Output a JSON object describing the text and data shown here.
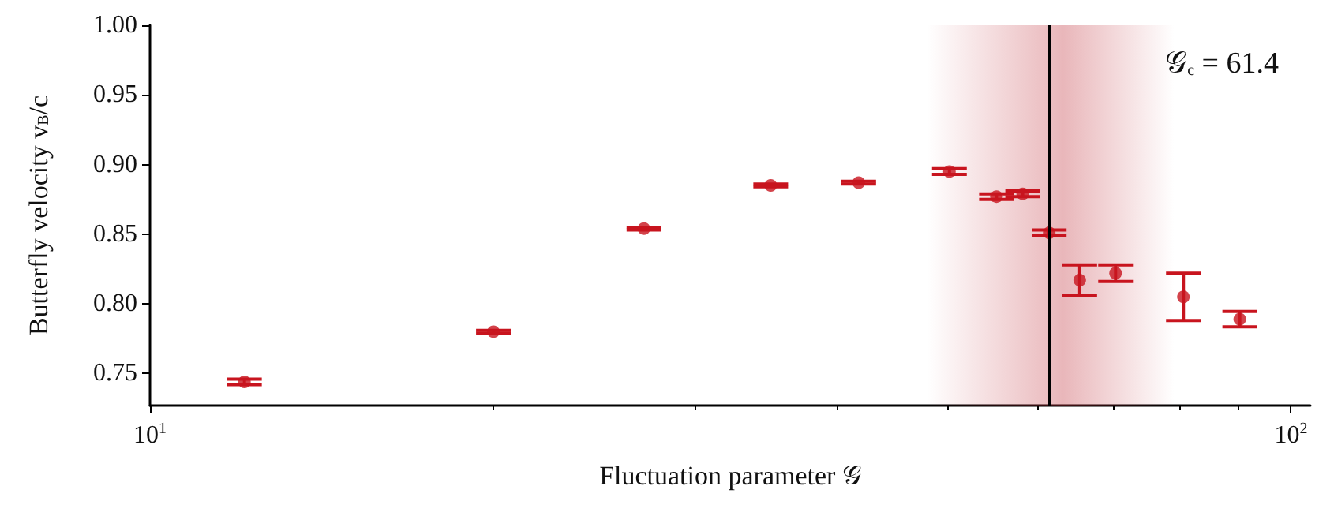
{
  "chart_data": {
    "type": "scatter",
    "xlabel": "Fluctuation parameter 𝒢",
    "ylabel": "Butterfly velocity v$_{B}$/c",
    "x": [
      12.1,
      20.0,
      27.1,
      35.0,
      41.8,
      50.2,
      55.2,
      58.2,
      61.4,
      65.3,
      70.2,
      80.5,
      90.2
    ],
    "series": [
      {
        "color": "#c8141e",
        "values": [
          0.744,
          0.78,
          0.854,
          0.885,
          0.887,
          0.895,
          0.877,
          0.879,
          0.851,
          0.817,
          0.822,
          0.805,
          0.789
        ],
        "errors": [
          0.002,
          0.001,
          0.001,
          0.001,
          0.001,
          0.002,
          0.002,
          0.002,
          0.002,
          0.011,
          0.006,
          0.017,
          0.0055
        ]
      }
    ],
    "log": "x",
    "marker": "circle",
    "xlim": [
      10,
      104
    ],
    "xticks": [
      {
        "value": 10,
        "label": "10$^{1}$"
      },
      {
        "value": 100,
        "label": "10$^{2}$"
      }
    ],
    "ylim": [
      0.727,
      1.0
    ],
    "yticks": [
      0.75,
      {
        "value": 0.8,
        "label": "0.80"
      },
      0.85,
      {
        "value": 0.9,
        "label": "0.90"
      },
      0.95,
      {
        "value": 1.0,
        "label": "1.00"
      }
    ],
    "ref_lines": [
      {
        "axis": "x",
        "value": 61.4,
        "label": "𝒢$_{c}$ = 61.4",
        "color": "#000000"
      }
    ],
    "bands": [
      {
        "axis": "x",
        "from": 48,
        "to": 79,
        "color": "#c0303a"
      }
    ],
    "legend": "top right",
    "grid": false
  }
}
